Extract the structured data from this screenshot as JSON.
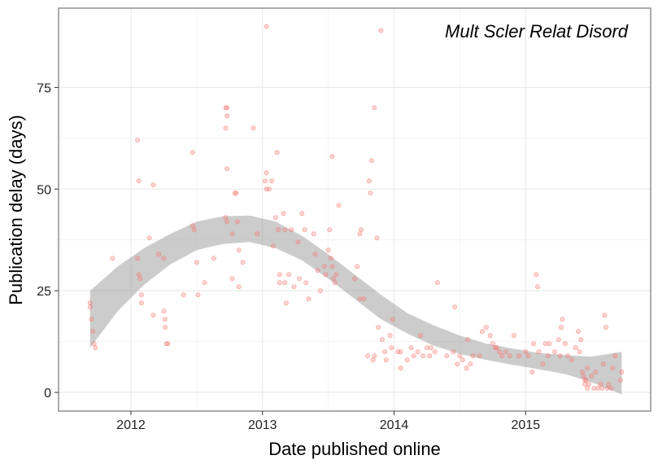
{
  "chart_data": {
    "type": "scatter",
    "title": "",
    "annotation": "Mult Scler Relat Disord",
    "xlabel": "Date published online",
    "ylabel": "Publication delay (days)",
    "xlim": [
      2011.45,
      2015.95
    ],
    "ylim": [
      -4.6,
      94.5
    ],
    "x_ticks": [
      {
        "value": 2012,
        "label": "2012"
      },
      {
        "value": 2013,
        "label": "2013"
      },
      {
        "value": 2014,
        "label": "2014"
      },
      {
        "value": 2015,
        "label": "2015"
      }
    ],
    "y_ticks": [
      {
        "value": 0,
        "label": "0"
      },
      {
        "value": 25,
        "label": "25"
      },
      {
        "value": 50,
        "label": "50"
      },
      {
        "value": 75,
        "label": "75"
      }
    ],
    "grid": true,
    "point_color": "#f8766d",
    "band_color": "#999999",
    "points": [
      [
        2011.69,
        22
      ],
      [
        2011.69,
        21
      ],
      [
        2011.7,
        18
      ],
      [
        2011.71,
        15
      ],
      [
        2011.72,
        12
      ],
      [
        2011.73,
        11
      ],
      [
        2011.86,
        33
      ],
      [
        2012.05,
        62
      ],
      [
        2012.06,
        52
      ],
      [
        2012.05,
        33
      ],
      [
        2012.06,
        29
      ],
      [
        2012.07,
        28
      ],
      [
        2012.08,
        24
      ],
      [
        2012.08,
        22
      ],
      [
        2012.14,
        38
      ],
      [
        2012.17,
        51
      ],
      [
        2012.17,
        19
      ],
      [
        2012.21,
        34
      ],
      [
        2012.25,
        33
      ],
      [
        2012.25,
        20
      ],
      [
        2012.26,
        18
      ],
      [
        2012.26,
        16
      ],
      [
        2012.27,
        12
      ],
      [
        2012.28,
        12
      ],
      [
        2012.4,
        24
      ],
      [
        2012.47,
        59
      ],
      [
        2012.47,
        41
      ],
      [
        2012.48,
        40
      ],
      [
        2012.5,
        32
      ],
      [
        2012.51,
        24
      ],
      [
        2012.56,
        27
      ],
      [
        2012.63,
        33
      ],
      [
        2012.72,
        70
      ],
      [
        2012.73,
        70
      ],
      [
        2012.73,
        68
      ],
      [
        2012.72,
        65
      ],
      [
        2012.73,
        55
      ],
      [
        2012.72,
        43
      ],
      [
        2012.73,
        42
      ],
      [
        2012.77,
        39
      ],
      [
        2012.77,
        28
      ],
      [
        2012.79,
        49
      ],
      [
        2012.8,
        49
      ],
      [
        2012.81,
        42
      ],
      [
        2012.82,
        35
      ],
      [
        2012.82,
        26
      ],
      [
        2012.85,
        32
      ],
      [
        2012.93,
        65
      ],
      [
        2012.96,
        39
      ],
      [
        2013.03,
        90
      ],
      [
        2013.03,
        54
      ],
      [
        2013.02,
        52
      ],
      [
        2013.03,
        50
      ],
      [
        2013.05,
        50
      ],
      [
        2013.07,
        52
      ],
      [
        2013.08,
        36
      ],
      [
        2013.1,
        43
      ],
      [
        2013.11,
        59
      ],
      [
        2013.12,
        40
      ],
      [
        2013.13,
        29
      ],
      [
        2013.13,
        27
      ],
      [
        2013.16,
        44
      ],
      [
        2013.17,
        40
      ],
      [
        2013.17,
        27
      ],
      [
        2013.18,
        22
      ],
      [
        2013.2,
        29
      ],
      [
        2013.22,
        40
      ],
      [
        2013.24,
        26
      ],
      [
        2013.27,
        37
      ],
      [
        2013.28,
        28
      ],
      [
        2013.3,
        44
      ],
      [
        2013.32,
        40
      ],
      [
        2013.33,
        27
      ],
      [
        2013.35,
        23
      ],
      [
        2013.39,
        39
      ],
      [
        2013.4,
        34
      ],
      [
        2013.42,
        30
      ],
      [
        2013.44,
        25
      ],
      [
        2013.47,
        31
      ],
      [
        2013.48,
        29
      ],
      [
        2013.5,
        35
      ],
      [
        2013.51,
        40
      ],
      [
        2013.52,
        33
      ],
      [
        2013.53,
        58
      ],
      [
        2013.53,
        31
      ],
      [
        2013.54,
        28
      ],
      [
        2013.55,
        27
      ],
      [
        2013.56,
        29
      ],
      [
        2013.58,
        46
      ],
      [
        2013.7,
        28
      ],
      [
        2013.72,
        31
      ],
      [
        2013.74,
        39
      ],
      [
        2013.75,
        40
      ],
      [
        2013.74,
        23
      ],
      [
        2013.77,
        23
      ],
      [
        2013.8,
        9
      ],
      [
        2013.81,
        52
      ],
      [
        2013.82,
        49
      ],
      [
        2013.83,
        57
      ],
      [
        2013.85,
        70
      ],
      [
        2013.84,
        8
      ],
      [
        2013.85,
        9
      ],
      [
        2013.87,
        38
      ],
      [
        2013.88,
        16
      ],
      [
        2013.9,
        89
      ],
      [
        2013.91,
        13
      ],
      [
        2013.93,
        10
      ],
      [
        2013.94,
        8
      ],
      [
        2013.97,
        14
      ],
      [
        2013.98,
        11
      ],
      [
        2013.99,
        18
      ],
      [
        2014.03,
        10
      ],
      [
        2014.05,
        6
      ],
      [
        2014.05,
        10
      ],
      [
        2014.1,
        8
      ],
      [
        2014.13,
        11
      ],
      [
        2014.15,
        9
      ],
      [
        2014.18,
        10
      ],
      [
        2014.2,
        14
      ],
      [
        2014.22,
        9
      ],
      [
        2014.25,
        11
      ],
      [
        2014.27,
        9
      ],
      [
        2014.28,
        11
      ],
      [
        2014.31,
        10
      ],
      [
        2014.33,
        27
      ],
      [
        2014.4,
        9
      ],
      [
        2014.45,
        10
      ],
      [
        2014.46,
        21
      ],
      [
        2014.48,
        7
      ],
      [
        2014.5,
        9
      ],
      [
        2014.52,
        8
      ],
      [
        2014.55,
        6
      ],
      [
        2014.56,
        13
      ],
      [
        2014.58,
        7
      ],
      [
        2014.6,
        9
      ],
      [
        2014.65,
        9
      ],
      [
        2014.67,
        15
      ],
      [
        2014.7,
        16
      ],
      [
        2014.73,
        14
      ],
      [
        2014.75,
        12
      ],
      [
        2014.77,
        11
      ],
      [
        2014.78,
        11
      ],
      [
        2014.8,
        10
      ],
      [
        2014.82,
        9
      ],
      [
        2014.85,
        10
      ],
      [
        2014.88,
        9
      ],
      [
        2014.91,
        14
      ],
      [
        2014.95,
        9
      ],
      [
        2015.0,
        10
      ],
      [
        2015.02,
        9
      ],
      [
        2015.05,
        5
      ],
      [
        2015.06,
        12
      ],
      [
        2015.08,
        29
      ],
      [
        2015.09,
        26
      ],
      [
        2015.1,
        10
      ],
      [
        2015.13,
        7
      ],
      [
        2015.15,
        12
      ],
      [
        2015.17,
        9
      ],
      [
        2015.18,
        12
      ],
      [
        2015.22,
        10
      ],
      [
        2015.25,
        13
      ],
      [
        2015.26,
        9
      ],
      [
        2015.27,
        16
      ],
      [
        2015.28,
        18
      ],
      [
        2015.3,
        12
      ],
      [
        2015.32,
        9
      ],
      [
        2015.35,
        8
      ],
      [
        2015.38,
        11
      ],
      [
        2015.4,
        15
      ],
      [
        2015.41,
        10
      ],
      [
        2015.42,
        13
      ],
      [
        2015.43,
        5
      ],
      [
        2015.44,
        4
      ],
      [
        2015.45,
        3
      ],
      [
        2015.45,
        2
      ],
      [
        2015.46,
        3
      ],
      [
        2015.47,
        6
      ],
      [
        2015.47,
        1
      ],
      [
        2015.48,
        2
      ],
      [
        2015.5,
        4
      ],
      [
        2015.52,
        1
      ],
      [
        2015.53,
        5
      ],
      [
        2015.55,
        1
      ],
      [
        2015.57,
        2
      ],
      [
        2015.58,
        1
      ],
      [
        2015.59,
        7
      ],
      [
        2015.6,
        19
      ],
      [
        2015.61,
        16
      ],
      [
        2015.62,
        1
      ],
      [
        2015.63,
        2
      ],
      [
        2015.65,
        1
      ],
      [
        2015.66,
        6
      ],
      [
        2015.68,
        9
      ],
      [
        2015.72,
        3
      ],
      [
        2015.73,
        5
      ]
    ],
    "smooth": [
      {
        "x": 2011.69,
        "y": 18.0,
        "lo": 11.0,
        "hi": 25.0
      },
      {
        "x": 2011.9,
        "y": 25.5,
        "lo": 20.0,
        "hi": 31.0
      },
      {
        "x": 2012.1,
        "y": 31.0,
        "lo": 26.5,
        "hi": 35.5
      },
      {
        "x": 2012.3,
        "y": 35.3,
        "lo": 31.5,
        "hi": 39.0
      },
      {
        "x": 2012.5,
        "y": 38.5,
        "lo": 35.0,
        "hi": 42.0
      },
      {
        "x": 2012.7,
        "y": 40.0,
        "lo": 36.5,
        "hi": 43.3
      },
      {
        "x": 2012.9,
        "y": 40.0,
        "lo": 37.0,
        "hi": 43.5
      },
      {
        "x": 2013.1,
        "y": 38.5,
        "lo": 35.5,
        "hi": 42.0
      },
      {
        "x": 2013.3,
        "y": 35.5,
        "lo": 32.5,
        "hi": 38.5
      },
      {
        "x": 2013.5,
        "y": 31.0,
        "lo": 28.0,
        "hi": 34.0
      },
      {
        "x": 2013.7,
        "y": 26.0,
        "lo": 23.0,
        "hi": 29.0
      },
      {
        "x": 2013.9,
        "y": 21.0,
        "lo": 18.0,
        "hi": 24.0
      },
      {
        "x": 2014.1,
        "y": 17.0,
        "lo": 14.5,
        "hi": 19.5
      },
      {
        "x": 2014.3,
        "y": 14.0,
        "lo": 11.5,
        "hi": 16.5
      },
      {
        "x": 2014.5,
        "y": 11.7,
        "lo": 9.5,
        "hi": 14.0
      },
      {
        "x": 2014.7,
        "y": 10.0,
        "lo": 8.0,
        "hi": 12.0
      },
      {
        "x": 2014.9,
        "y": 8.8,
        "lo": 6.8,
        "hi": 10.8
      },
      {
        "x": 2015.1,
        "y": 7.7,
        "lo": 5.7,
        "hi": 9.7
      },
      {
        "x": 2015.3,
        "y": 6.8,
        "lo": 4.5,
        "hi": 9.2
      },
      {
        "x": 2015.5,
        "y": 5.5,
        "lo": 2.5,
        "hi": 8.8
      },
      {
        "x": 2015.73,
        "y": 4.8,
        "lo": -0.5,
        "hi": 10.0
      }
    ]
  }
}
